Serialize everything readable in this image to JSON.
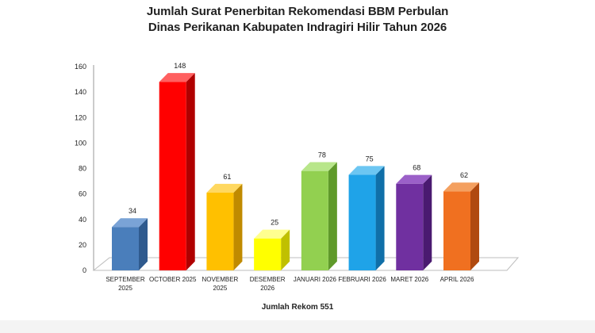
{
  "chart_data": {
    "type": "bar",
    "title_lines": [
      "Jumlah Surat Penerbitan Rekomendasi BBM Perbulan",
      "Dinas Perikanan Kabupaten Indragiri Hilir Tahun 2026"
    ],
    "categories": [
      [
        "SEPTEMBER",
        "2025"
      ],
      [
        "OCTOBER 2025"
      ],
      [
        "NOVEMBER",
        "2025"
      ],
      [
        "DESEMBER",
        "2026"
      ],
      [
        "JANUARI 2026"
      ],
      [
        "FEBRUARI 2026"
      ],
      [
        "MARET 2026"
      ],
      [
        "APRIL 2026"
      ]
    ],
    "values": [
      34,
      148,
      61,
      25,
      78,
      75,
      68,
      62
    ],
    "data_labels": [
      "34",
      "148",
      "61",
      "25",
      "78",
      "75",
      "68",
      "62"
    ],
    "ylim": [
      0,
      160
    ],
    "y_ticks": [
      0,
      20,
      40,
      60,
      80,
      100,
      120,
      140,
      160
    ],
    "xlabel": "",
    "ylabel": "",
    "grid": false,
    "legend": "none",
    "style": "3d-column",
    "bar_colors": [
      "#4a7ebb",
      "#ff0000",
      "#ffc000",
      "#ffff00",
      "#92d050",
      "#1fa3e8",
      "#7030a0",
      "#f07020"
    ],
    "bar_side_colors": [
      "#2f5a8e",
      "#b00000",
      "#c08a00",
      "#c0c000",
      "#5f9a2a",
      "#106fa8",
      "#4a1a70",
      "#b04a10"
    ],
    "bar_top_colors": [
      "#7aa3d6",
      "#ff6060",
      "#ffd860",
      "#ffff90",
      "#b8e68a",
      "#6cc6f2",
      "#9b60c8",
      "#f4a060"
    ],
    "footer": "Jumlah Rekom 551"
  }
}
